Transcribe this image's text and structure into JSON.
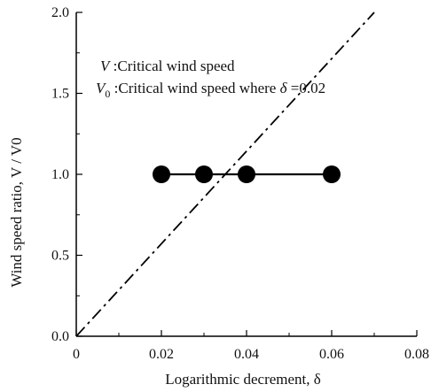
{
  "chart_data": {
    "type": "scatter",
    "xlabel": "Logarithmic decrement, δ",
    "ylabel": "Wind speed ratio, V / V0",
    "xlim": [
      0,
      0.08
    ],
    "ylim": [
      0,
      2.0
    ],
    "x_ticks": [
      "0",
      "0.02",
      "0.04",
      "0.06",
      "0.08"
    ],
    "y_ticks": [
      "0.0",
      "0.5",
      "1.0",
      "1.5",
      "2.0"
    ],
    "x_tick_values": [
      0,
      0.02,
      0.04,
      0.06,
      0.08
    ],
    "y_tick_values": [
      0,
      0.5,
      1.0,
      1.5,
      2.0
    ],
    "grid": false,
    "series": [
      {
        "kind": "markers-with-line",
        "x": [
          0.02,
          0.03,
          0.04,
          0.06
        ],
        "y": [
          1.0,
          1.0,
          1.0,
          1.0
        ],
        "color": "#000000"
      },
      {
        "kind": "dash-dot-line",
        "x": [
          0,
          0.07
        ],
        "y": [
          0,
          2.0
        ],
        "color": "#000000"
      }
    ],
    "legend": {
      "placement": "top-left",
      "line1": {
        "symbol": "V",
        "text": " :Critical wind speed"
      },
      "line2": {
        "symbol": "V",
        "subscript": "0",
        "text_before": " :Critical wind speed where ",
        "delta": "δ",
        "text_after": " =0.02"
      }
    }
  }
}
